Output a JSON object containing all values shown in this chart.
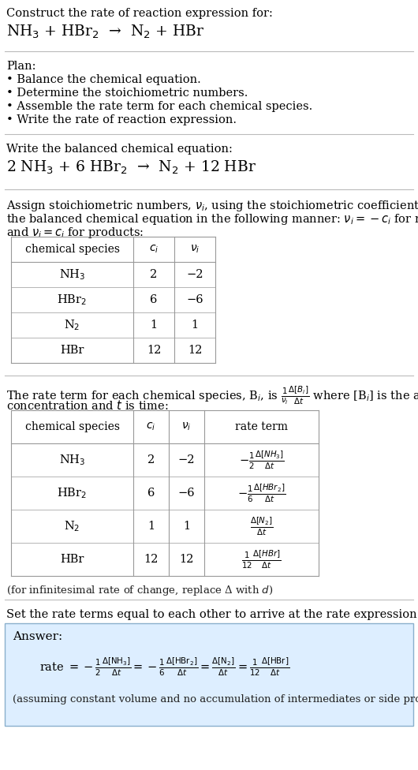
{
  "bg_color": "#ffffff",
  "text_color": "#000000",
  "title_line1": "Construct the rate of reaction expression for:",
  "title_eq_parts": [
    [
      "NH",
      false
    ],
    [
      "3",
      true
    ],
    [
      " + HBr",
      false
    ],
    [
      "2",
      true
    ],
    [
      "  →  N",
      false
    ],
    [
      "2",
      true
    ],
    [
      " + HBr",
      false
    ]
  ],
  "plan_header": "Plan:",
  "plan_items": [
    "• Balance the chemical equation.",
    "• Determine the stoichiometric numbers.",
    "• Assemble the rate term for each chemical species.",
    "• Write the rate of reaction expression."
  ],
  "balanced_header": "Write the balanced chemical equation:",
  "balanced_eq": "2 NH$_3$ + 6 HBr$_2$  →  N$_2$ + 12 HBr",
  "assign_text1": "Assign stoichiometric numbers, $\\nu_i$, using the stoichiometric coefficients, $c_i$, from",
  "assign_text2": "the balanced chemical equation in the following manner: $\\nu_i = -c_i$ for reactants",
  "assign_text3": "and $\\nu_i = c_i$ for products:",
  "table1_headers": [
    "chemical species",
    "$c_i$",
    "$\\nu_i$"
  ],
  "table1_rows": [
    [
      "NH$_3$",
      "2",
      "−2"
    ],
    [
      "HBr$_2$",
      "6",
      "−6"
    ],
    [
      "N$_2$",
      "1",
      "1"
    ],
    [
      "HBr",
      "12",
      "12"
    ]
  ],
  "rate_text1_a": "The rate term for each chemical species, B$_i$, is $\\frac{1}{\\nu_i}\\frac{\\Delta[B_i]}{\\Delta t}$",
  "rate_text1_b": " where [B$_i$] is the amount",
  "rate_text2": "concentration and $t$ is time:",
  "table2_headers": [
    "chemical species",
    "$c_i$",
    "$\\nu_i$",
    "rate term"
  ],
  "table2_rows": [
    [
      "NH$_3$",
      "2",
      "−2",
      "$-\\frac{1}{2}\\frac{\\Delta[NH_3]}{\\Delta t}$"
    ],
    [
      "HBr$_2$",
      "6",
      "−6",
      "$-\\frac{1}{6}\\frac{\\Delta[HBr_2]}{\\Delta t}$"
    ],
    [
      "N$_2$",
      "1",
      "1",
      "$\\frac{\\Delta[N_2]}{\\Delta t}$"
    ],
    [
      "HBr",
      "12",
      "12",
      "$\\frac{1}{12}\\frac{\\Delta[HBr]}{\\Delta t}$"
    ]
  ],
  "infinitesimal_note": "(for infinitesimal rate of change, replace Δ with $d$)",
  "set_rate_text": "Set the rate terms equal to each other to arrive at the rate expression:",
  "answer_box_color": "#ddeeff",
  "answer_label": "Answer:",
  "answer_note": "(assuming constant volume and no accumulation of intermediates or side products)",
  "table_border_color": "#999999",
  "separator_color": "#bbbbbb"
}
